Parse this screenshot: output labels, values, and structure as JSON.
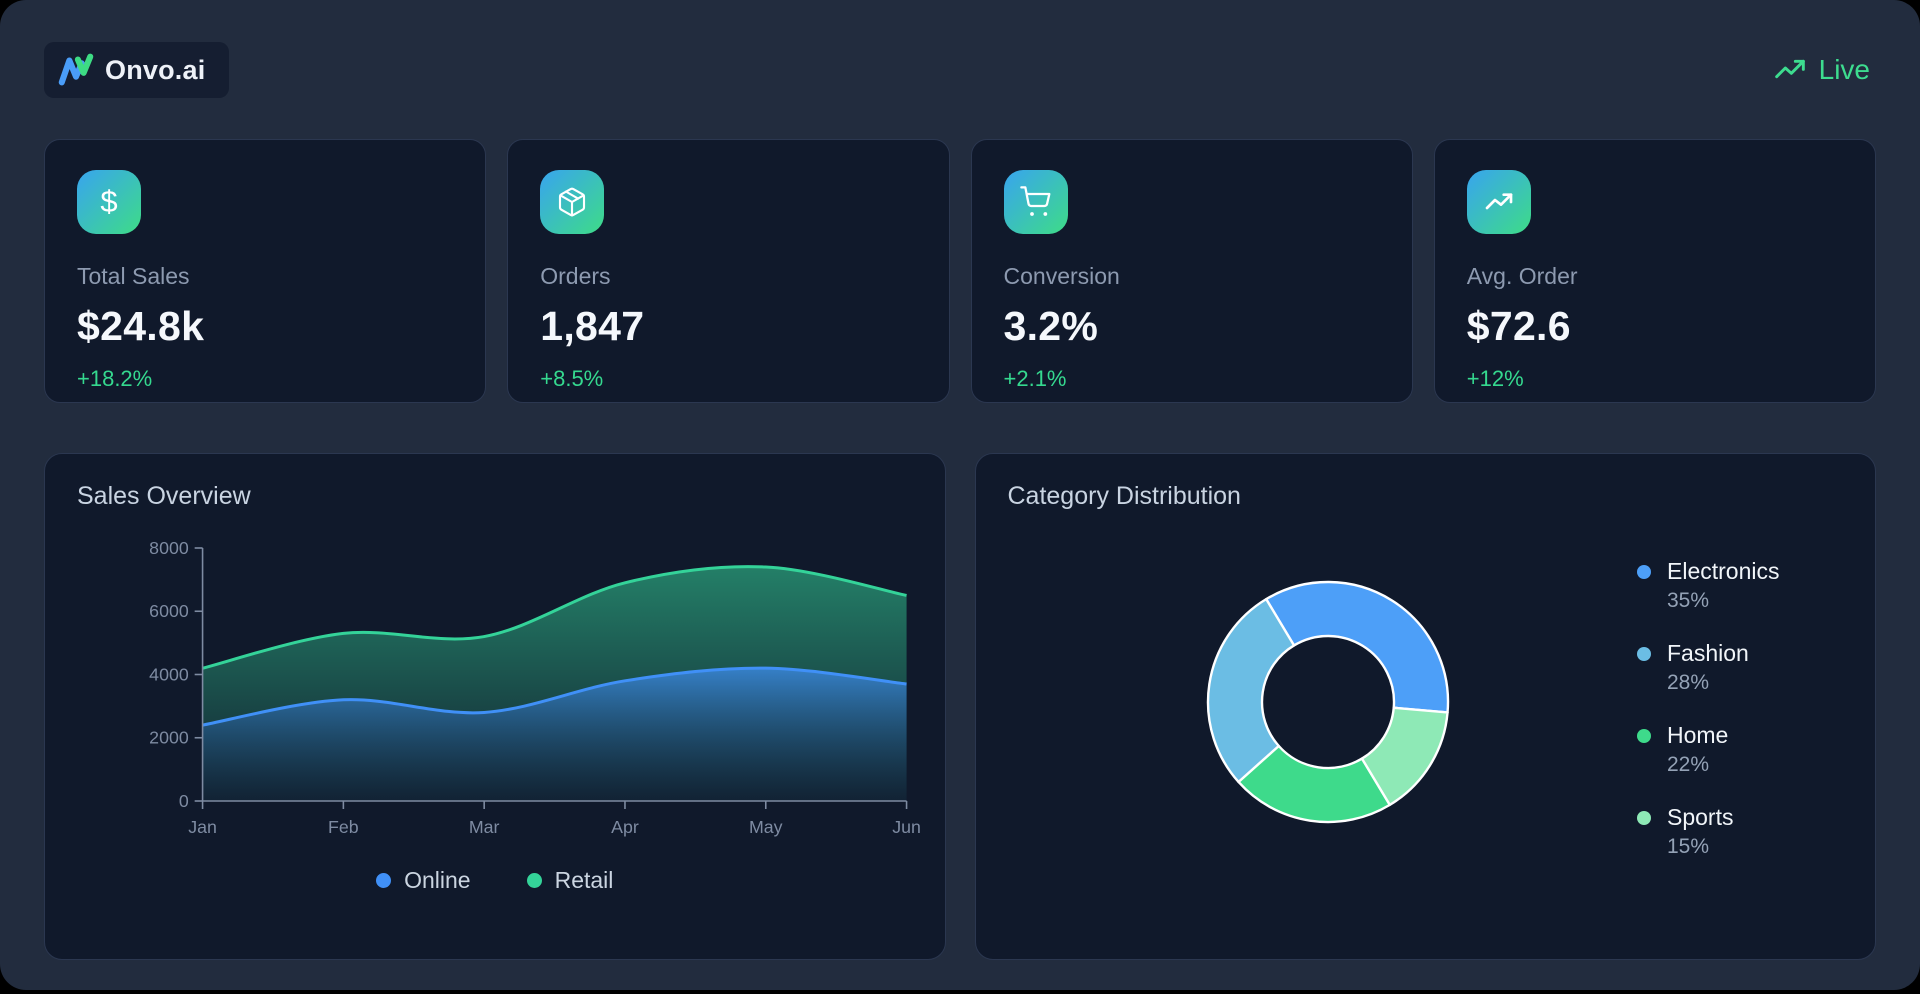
{
  "header": {
    "brand": "Onvo.ai",
    "live_label": "Live"
  },
  "stats": [
    {
      "icon": "dollar-icon",
      "label": "Total Sales",
      "value": "$24.8k",
      "delta": "+18.2%"
    },
    {
      "icon": "package-icon",
      "label": "Orders",
      "value": "1,847",
      "delta": "+8.5%"
    },
    {
      "icon": "cart-icon",
      "label": "Conversion",
      "value": "3.2%",
      "delta": "+2.1%"
    },
    {
      "icon": "trending-up-icon",
      "label": "Avg. Order",
      "value": "$72.6",
      "delta": "+12%"
    }
  ],
  "colors": {
    "page_bg": "#222c3e",
    "card_bg": "#10192b",
    "card_border": "#2b3750",
    "accent_green": "#35d98f",
    "accent_blue": "#4a9df8",
    "icon_gradient": [
      "#38a4ef",
      "#3edc87"
    ],
    "axis": "#7e8ba2"
  },
  "chart_data": [
    {
      "type": "area",
      "title": "Sales Overview",
      "stacked": true,
      "x": [
        "Jan",
        "Feb",
        "Mar",
        "Apr",
        "May",
        "Jun"
      ],
      "series": [
        {
          "name": "Online",
          "color": "#4090f7",
          "values": [
            2400,
            3200,
            2800,
            3800,
            4200,
            3700
          ]
        },
        {
          "name": "Retail",
          "color": "#34d399",
          "values": [
            1800,
            2100,
            2400,
            3100,
            3200,
            2800
          ]
        }
      ],
      "xlabel": "",
      "ylabel": "",
      "ylim": [
        0,
        8000
      ],
      "yticks": [
        0,
        2000,
        4000,
        6000,
        8000
      ],
      "grid": false,
      "legend_position": "bottom"
    },
    {
      "type": "pie",
      "title": "Category Distribution",
      "donut": true,
      "categories": [
        "Electronics",
        "Fashion",
        "Home",
        "Sports"
      ],
      "values": [
        35,
        28,
        22,
        15
      ],
      "labels": [
        "35%",
        "28%",
        "22%",
        "15%"
      ],
      "colors": [
        "#4d9ff8",
        "#6bbde4",
        "#3eda8b",
        "#8ee9b6"
      ],
      "start_angle_cw_from_top": 95,
      "direction": "counterclockwise",
      "legend_position": "right",
      "grid": false
    }
  ]
}
